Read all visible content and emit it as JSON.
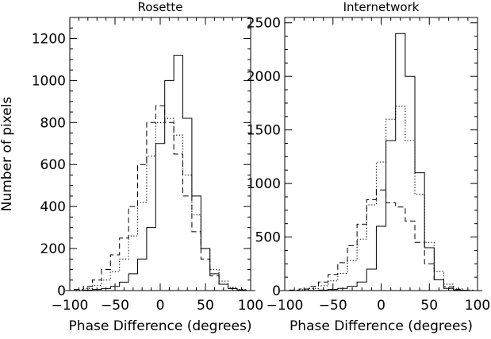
{
  "chart_data": [
    {
      "type": "histogram",
      "title": "Rosette",
      "xlabel": "Phase Difference (degrees)",
      "ylabel": "Number of pixels",
      "xlim": [
        -100,
        100
      ],
      "ylim": [
        0,
        1300
      ],
      "xticks": [
        -100,
        -50,
        0,
        50,
        100
      ],
      "xtick_labels": [
        "−100",
        "−50",
        "0",
        "50",
        "100"
      ],
      "yticks": [
        0,
        200,
        400,
        600,
        800,
        1000,
        1200
      ],
      "ytick_labels": [
        "0",
        "200",
        "400",
        "600",
        "800",
        "1000",
        "1200"
      ],
      "grid": false,
      "x": [
        -100,
        -90,
        -80,
        -70,
        -60,
        -50,
        -40,
        -30,
        -20,
        -10,
        0,
        10,
        20,
        30,
        40,
        50,
        60,
        70,
        80,
        90,
        100
      ],
      "series": [
        {
          "style": "solid",
          "values": [
            0,
            0,
            2,
            5,
            10,
            20,
            40,
            80,
            150,
            300,
            700,
            1000,
            1120,
            820,
            450,
            200,
            80,
            30,
            10,
            3,
            0
          ]
        },
        {
          "style": "dashed",
          "values": [
            0,
            5,
            20,
            50,
            100,
            170,
            250,
            400,
            600,
            800,
            880,
            800,
            650,
            450,
            280,
            150,
            70,
            30,
            10,
            3,
            0
          ]
        },
        {
          "style": "dotted",
          "values": [
            0,
            3,
            10,
            25,
            50,
            90,
            150,
            260,
            420,
            640,
            800,
            820,
            740,
            550,
            360,
            200,
            100,
            45,
            15,
            5,
            0
          ]
        }
      ]
    },
    {
      "type": "histogram",
      "title": "Internetwork",
      "xlabel": "Phase Difference (degrees)",
      "ylabel": "",
      "xlim": [
        -100,
        100
      ],
      "ylim": [
        0,
        2550
      ],
      "xticks": [
        -100,
        -50,
        0,
        50,
        100
      ],
      "xtick_labels": [
        "−100",
        "−50",
        "0",
        "50",
        "100"
      ],
      "yticks": [
        0,
        500,
        1000,
        1500,
        2000,
        2500
      ],
      "ytick_labels": [
        "0",
        "500",
        "1000",
        "1500",
        "2000",
        "2500"
      ],
      "grid": false,
      "x": [
        -100,
        -90,
        -80,
        -70,
        -60,
        -50,
        -40,
        -30,
        -20,
        -10,
        0,
        10,
        20,
        30,
        40,
        50,
        60,
        70,
        80,
        90,
        100
      ],
      "series": [
        {
          "style": "solid",
          "values": [
            0,
            0,
            0,
            2,
            5,
            10,
            20,
            40,
            80,
            200,
            600,
            1400,
            2400,
            2000,
            1100,
            400,
            100,
            20,
            5,
            0,
            0
          ]
        },
        {
          "style": "dashed",
          "values": [
            0,
            5,
            15,
            40,
            80,
            150,
            260,
            420,
            620,
            850,
            940,
            820,
            780,
            650,
            450,
            250,
            100,
            35,
            10,
            3,
            0
          ]
        },
        {
          "style": "dotted",
          "values": [
            0,
            2,
            8,
            20,
            45,
            90,
            160,
            280,
            480,
            800,
            1200,
            1600,
            1720,
            1400,
            900,
            450,
            180,
            60,
            15,
            4,
            0
          ]
        }
      ]
    }
  ]
}
